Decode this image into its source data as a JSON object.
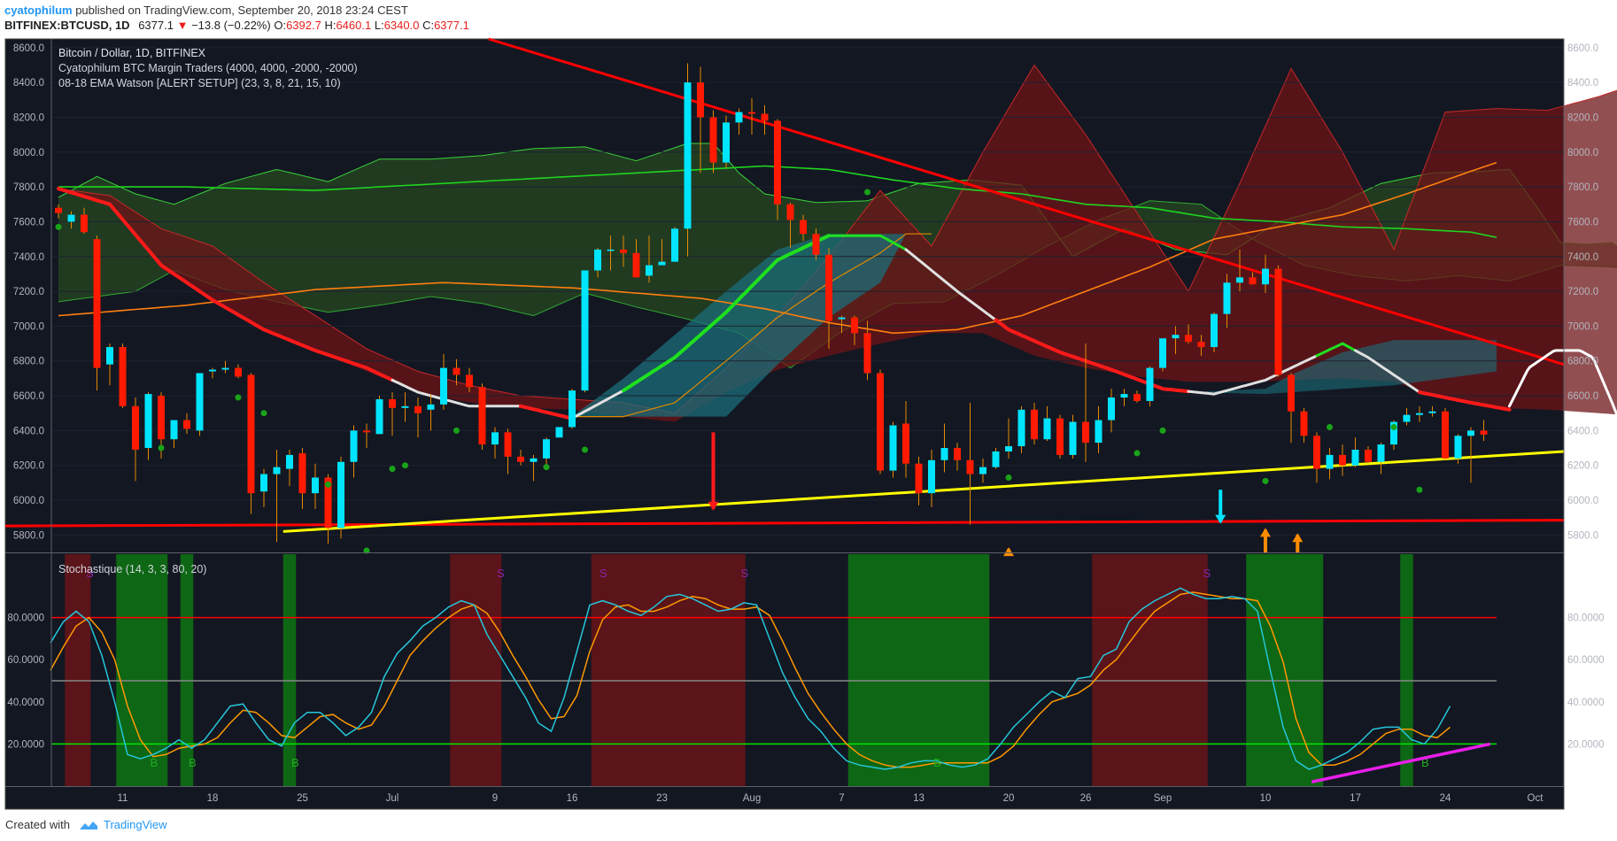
{
  "header": {
    "author": "cyatophilum",
    "published_text": "published on TradingView.com, September 20, 2018 23:24 CEST",
    "symbol": "BITFINEX:BTCUSD, 1D",
    "last": "6377.1",
    "change": "−13.8 (−0.22%)",
    "open_label": "O:",
    "open": "6392.7",
    "high_label": "H:",
    "high": "6460.1",
    "low_label": "L:",
    "low": "6340.0",
    "close_label": "C:",
    "close": "6377.1"
  },
  "footer": {
    "created_with": "Created with",
    "brand": "TradingView"
  },
  "colors": {
    "background": "#131722",
    "bull": "#00e5ff",
    "bear": "#ff1a00",
    "trendline_red": "#ff0000",
    "trendline_yellow": "#ffff00",
    "projection": "#ffffff",
    "stoch_k": "#26c6da",
    "stoch_d": "#ff9800",
    "stoch_overbought": "#ff0000",
    "stoch_oversold": "#00e600",
    "stoch_mid": "#888888",
    "divergence": "#e91ee9"
  },
  "chart_data": [
    {
      "type": "candlestick",
      "title": "Bitcoin / Dollar, 1D, BITFINEX",
      "indicator_labels": [
        "Cyatophilum BTC Margin Traders (4000, 4000, -2000, -2000)",
        "08-18 EMA Watson [ALERT SETUP] (23, 3, 8, 21, 15, 10)"
      ],
      "ylim": [
        5700,
        8650
      ],
      "y_ticks": [
        "8600.0",
        "8400.0",
        "8200.0",
        "8000.0",
        "7800.0",
        "7600.0",
        "7400.0",
        "7200.0",
        "7000.0",
        "6800.0",
        "6600.0",
        "6400.0",
        "6200.0",
        "6000.0",
        "5800.0"
      ],
      "x_tick_labels": [
        "11",
        "18",
        "25",
        "Jul",
        "9",
        "16",
        "23",
        "Aug",
        "7",
        "13",
        "20",
        "26",
        "Sep",
        "10",
        "17",
        "24",
        "Oct"
      ],
      "candles_ohlc": [
        [
          7680,
          7700,
          7620,
          7650
        ],
        [
          7600,
          7660,
          7560,
          7640
        ],
        [
          7640,
          7680,
          7530,
          7540
        ],
        [
          7500,
          7520,
          6630,
          6760
        ],
        [
          6780,
          6900,
          6660,
          6880
        ],
        [
          6880,
          6900,
          6530,
          6540
        ],
        [
          6540,
          6590,
          6110,
          6290
        ],
        [
          6300,
          6620,
          6230,
          6610
        ],
        [
          6600,
          6620,
          6240,
          6350
        ],
        [
          6350,
          6460,
          6300,
          6460
        ],
        [
          6460,
          6500,
          6380,
          6410
        ],
        [
          6400,
          6730,
          6370,
          6730
        ],
        [
          6740,
          6760,
          6700,
          6750
        ],
        [
          6750,
          6800,
          6730,
          6760
        ],
        [
          6760,
          6780,
          6700,
          6710
        ],
        [
          6720,
          6730,
          5920,
          6040
        ],
        [
          6050,
          6180,
          5960,
          6150
        ],
        [
          6150,
          6290,
          5760,
          6190
        ],
        [
          6180,
          6290,
          6080,
          6260
        ],
        [
          6270,
          6300,
          5950,
          6040
        ],
        [
          6040,
          6210,
          5950,
          6130
        ],
        [
          6130,
          6150,
          5750,
          5840
        ],
        [
          5840,
          6250,
          5780,
          6220
        ],
        [
          6220,
          6430,
          6130,
          6400
        ],
        [
          6400,
          6440,
          6300,
          6390
        ],
        [
          6380,
          6600,
          6380,
          6580
        ],
        [
          6580,
          6620,
          6370,
          6530
        ],
        [
          6530,
          6620,
          6450,
          6540
        ],
        [
          6540,
          6590,
          6360,
          6500
        ],
        [
          6520,
          6610,
          6400,
          6550
        ],
        [
          6550,
          6840,
          6520,
          6760
        ],
        [
          6760,
          6810,
          6660,
          6720
        ],
        [
          6720,
          6760,
          6620,
          6650
        ],
        [
          6650,
          6670,
          6290,
          6320
        ],
        [
          6320,
          6420,
          6240,
          6390
        ],
        [
          6390,
          6410,
          6150,
          6250
        ],
        [
          6250,
          6290,
          6200,
          6220
        ],
        [
          6220,
          6260,
          6110,
          6240
        ],
        [
          6240,
          6360,
          6200,
          6350
        ],
        [
          6360,
          6420,
          6360,
          6420
        ],
        [
          6420,
          6640,
          6410,
          6630
        ],
        [
          6630,
          7320,
          6620,
          7320
        ],
        [
          7320,
          7450,
          7280,
          7440
        ],
        [
          7440,
          7520,
          7320,
          7440
        ],
        [
          7440,
          7520,
          7340,
          7420
        ],
        [
          7420,
          7500,
          7290,
          7280
        ],
        [
          7290,
          7520,
          7250,
          7350
        ],
        [
          7350,
          7500,
          7360,
          7370
        ],
        [
          7370,
          7570,
          7370,
          7560
        ],
        [
          7560,
          8510,
          7400,
          8400
        ],
        [
          8400,
          8490,
          7880,
          8200
        ],
        [
          8200,
          8240,
          7880,
          7940
        ],
        [
          7940,
          8210,
          7910,
          8170
        ],
        [
          8170,
          8250,
          8100,
          8230
        ],
        [
          8230,
          8310,
          8100,
          8220
        ],
        [
          8220,
          8270,
          8100,
          8180
        ],
        [
          8180,
          8190,
          7610,
          7700
        ],
        [
          7700,
          7710,
          7450,
          7610
        ],
        [
          7610,
          7640,
          7490,
          7530
        ],
        [
          7530,
          7560,
          7380,
          7410
        ],
        [
          7410,
          7450,
          6870,
          7030
        ],
        [
          7040,
          7060,
          6960,
          7050
        ],
        [
          7050,
          7060,
          6890,
          6960
        ],
        [
          6960,
          7030,
          6690,
          6730
        ],
        [
          6730,
          6750,
          6150,
          6170
        ],
        [
          6170,
          6450,
          6130,
          6430
        ],
        [
          6440,
          6570,
          6130,
          6210
        ],
        [
          6210,
          6250,
          5970,
          6040
        ],
        [
          6040,
          6290,
          5960,
          6230
        ],
        [
          6230,
          6440,
          6160,
          6300
        ],
        [
          6300,
          6330,
          6170,
          6230
        ],
        [
          6230,
          6560,
          5860,
          6150
        ],
        [
          6150,
          6240,
          6100,
          6190
        ],
        [
          6190,
          6300,
          6180,
          6280
        ],
        [
          6280,
          6470,
          6240,
          6310
        ],
        [
          6310,
          6540,
          6270,
          6520
        ],
        [
          6520,
          6560,
          6320,
          6350
        ],
        [
          6350,
          6540,
          6340,
          6470
        ],
        [
          6470,
          6490,
          6240,
          6260
        ],
        [
          6260,
          6490,
          6240,
          6450
        ],
        [
          6450,
          6900,
          6220,
          6330
        ],
        [
          6330,
          6540,
          6270,
          6460
        ],
        [
          6460,
          6640,
          6390,
          6590
        ],
        [
          6590,
          6640,
          6540,
          6610
        ],
        [
          6610,
          6630,
          6560,
          6570
        ],
        [
          6570,
          6770,
          6540,
          6760
        ],
        [
          6760,
          6910,
          6740,
          6930
        ],
        [
          6930,
          7000,
          6840,
          6950
        ],
        [
          6950,
          7010,
          6900,
          6910
        ],
        [
          6910,
          6950,
          6830,
          6880
        ],
        [
          6880,
          7080,
          6850,
          7070
        ],
        [
          7070,
          7300,
          6990,
          7250
        ],
        [
          7250,
          7440,
          7200,
          7280
        ],
        [
          7280,
          7310,
          7240,
          7240
        ],
        [
          7240,
          7410,
          7190,
          7330
        ],
        [
          7330,
          7350,
          6710,
          6720
        ],
        [
          6720,
          6730,
          6330,
          6510
        ],
        [
          6510,
          6530,
          6330,
          6370
        ],
        [
          6370,
          6390,
          6100,
          6180
        ],
        [
          6180,
          6300,
          6120,
          6260
        ],
        [
          6260,
          6320,
          6140,
          6200
        ],
        [
          6200,
          6360,
          6190,
          6290
        ],
        [
          6290,
          6310,
          6210,
          6220
        ],
        [
          6220,
          6330,
          6150,
          6320
        ],
        [
          6320,
          6460,
          6290,
          6450
        ],
        [
          6450,
          6530,
          6430,
          6490
        ],
        [
          6490,
          6540,
          6450,
          6500
        ],
        [
          6500,
          6540,
          6480,
          6510
        ],
        [
          6510,
          6530,
          6230,
          6240
        ],
        [
          6240,
          6380,
          6210,
          6370
        ],
        [
          6370,
          6420,
          6100,
          6400
        ],
        [
          6400,
          6460,
          6340,
          6377
        ]
      ],
      "annotations": {
        "red_down_arrow_date": "Jul 23",
        "cyan_down_arrow_date": "Aug 30",
        "orange_up_arrow_dates": [
          "Aug 13",
          "Sep 3",
          "Sep 6"
        ]
      }
    },
    {
      "type": "line",
      "title": "Stochastique (14, 3, 3, 80, 20)",
      "ylim": [
        0,
        100
      ],
      "y_ticks": [
        "80.0000",
        "60.0000",
        "40.0000",
        "20.0000"
      ],
      "levels": {
        "overbought": 80,
        "mid": 50,
        "oversold": 20
      },
      "series": [
        {
          "name": "%K",
          "values": [
            68,
            78,
            83,
            78,
            62,
            40,
            15,
            13,
            15,
            18,
            22,
            18,
            22,
            30,
            38,
            39,
            30,
            22,
            19,
            30,
            35,
            35,
            30,
            24,
            28,
            35,
            52,
            63,
            69,
            76,
            80,
            85,
            88,
            86,
            72,
            62,
            52,
            42,
            30,
            26,
            42,
            64,
            86,
            88,
            86,
            83,
            81,
            85,
            90,
            91,
            89,
            86,
            83,
            84,
            87,
            86,
            70,
            54,
            42,
            32,
            26,
            18,
            12,
            10,
            9,
            8,
            9,
            11,
            12,
            12,
            10,
            9,
            10,
            13,
            20,
            28,
            34,
            40,
            45,
            42,
            51,
            52,
            62,
            65,
            78,
            84,
            88,
            91,
            94,
            91,
            89,
            89,
            90,
            89,
            83,
            55,
            28,
            12,
            8,
            10,
            13,
            16,
            21,
            27,
            28,
            28,
            22,
            20,
            27,
            38
          ]
        },
        {
          "name": "%D",
          "values": [
            55,
            66,
            76,
            80,
            73,
            60,
            38,
            22,
            14,
            15,
            18,
            19,
            20,
            23,
            30,
            36,
            35,
            30,
            24,
            23,
            28,
            33,
            34,
            30,
            27,
            29,
            38,
            50,
            62,
            69,
            75,
            80,
            84,
            86,
            82,
            73,
            62,
            52,
            41,
            32,
            33,
            43,
            64,
            79,
            85,
            86,
            83,
            83,
            85,
            88,
            90,
            89,
            86,
            84,
            84,
            85,
            81,
            69,
            56,
            44,
            35,
            27,
            20,
            15,
            12,
            10,
            9,
            9,
            10,
            11,
            11,
            11,
            11,
            11,
            14,
            19,
            27,
            34,
            40,
            42,
            44,
            48,
            55,
            60,
            68,
            76,
            83,
            87,
            91,
            92,
            91,
            90,
            89,
            89,
            88,
            76,
            59,
            32,
            16,
            10,
            10,
            12,
            15,
            20,
            25,
            27,
            27,
            24,
            23,
            28
          ]
        }
      ],
      "band_signals": [
        {
          "signal": "sell",
          "from": 1,
          "to": 2
        },
        {
          "signal": "buy",
          "from": 5,
          "to": 8
        },
        {
          "signal": "buy",
          "from": 10,
          "to": 10
        },
        {
          "signal": "buy",
          "from": 18,
          "to": 18
        },
        {
          "signal": "sell",
          "from": 31,
          "to": 34
        },
        {
          "signal": "sell",
          "from": 42,
          "to": 53
        },
        {
          "signal": "buy",
          "from": 62,
          "to": 72
        },
        {
          "signal": "sell",
          "from": 81,
          "to": 89
        },
        {
          "signal": "buy",
          "from": 93,
          "to": 98
        },
        {
          "signal": "buy",
          "from": 105,
          "to": 105
        }
      ],
      "signal_letters": [
        {
          "text": "S",
          "index": 2
        },
        {
          "text": "B",
          "index": 7
        },
        {
          "text": "B",
          "index": 10
        },
        {
          "text": "B",
          "index": 18
        },
        {
          "text": "S",
          "index": 34
        },
        {
          "text": "S",
          "index": 42
        },
        {
          "text": "S",
          "index": 53
        },
        {
          "text": "B",
          "index": 68
        },
        {
          "text": "S",
          "index": 89
        },
        {
          "text": "B",
          "index": 106
        }
      ]
    }
  ]
}
